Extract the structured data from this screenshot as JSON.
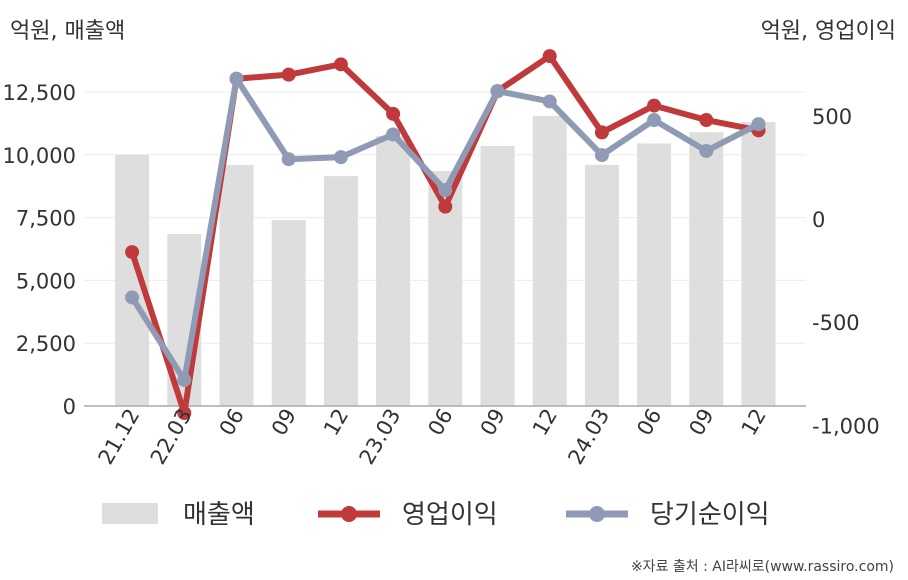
{
  "chart_data": {
    "type": "bar+line",
    "left_unit": "억원, 매출액",
    "right_unit": "억원, 영업이익",
    "categories": [
      "21.12",
      "22.03",
      "06",
      "09",
      "12",
      "23.03",
      "06",
      "09",
      "12",
      "24.03",
      "06",
      "09",
      "12"
    ],
    "left_axis": {
      "range": [
        0,
        12500
      ],
      "ticks": [
        0,
        2500,
        5000,
        7500,
        10000,
        12500
      ],
      "tick_labels": [
        "0",
        "2,500",
        "5,000",
        "7,500",
        "10,000",
        "12,500"
      ]
    },
    "right_axis": {
      "range": [
        -1100,
        800
      ],
      "ticks": [
        -1000,
        -500,
        0,
        500
      ],
      "tick_labels": [
        "-1,000",
        "-500",
        "0",
        "500"
      ]
    },
    "series": [
      {
        "name": "매출액",
        "kind": "bar",
        "axis": "left",
        "color": "#dedede",
        "values": [
          10000,
          6850,
          9600,
          7400,
          9150,
          10750,
          9350,
          10350,
          11550,
          9600,
          10450,
          10900,
          11300
        ]
      },
      {
        "name": "영업이익",
        "kind": "line",
        "axis": "right",
        "color": "#c0393b",
        "values": [
          -160,
          -940,
          680,
          700,
          750,
          510,
          60,
          620,
          790,
          420,
          550,
          480,
          430
        ]
      },
      {
        "name": "당기순이익",
        "kind": "line",
        "axis": "right",
        "color": "#8f9ab5",
        "values": [
          -380,
          -780,
          680,
          290,
          300,
          410,
          140,
          620,
          570,
          310,
          480,
          330,
          460
        ]
      }
    ],
    "grid": true,
    "legend_position": "bottom"
  },
  "source": "※자료 출처 : AI라씨로(www.rassiro.com)"
}
